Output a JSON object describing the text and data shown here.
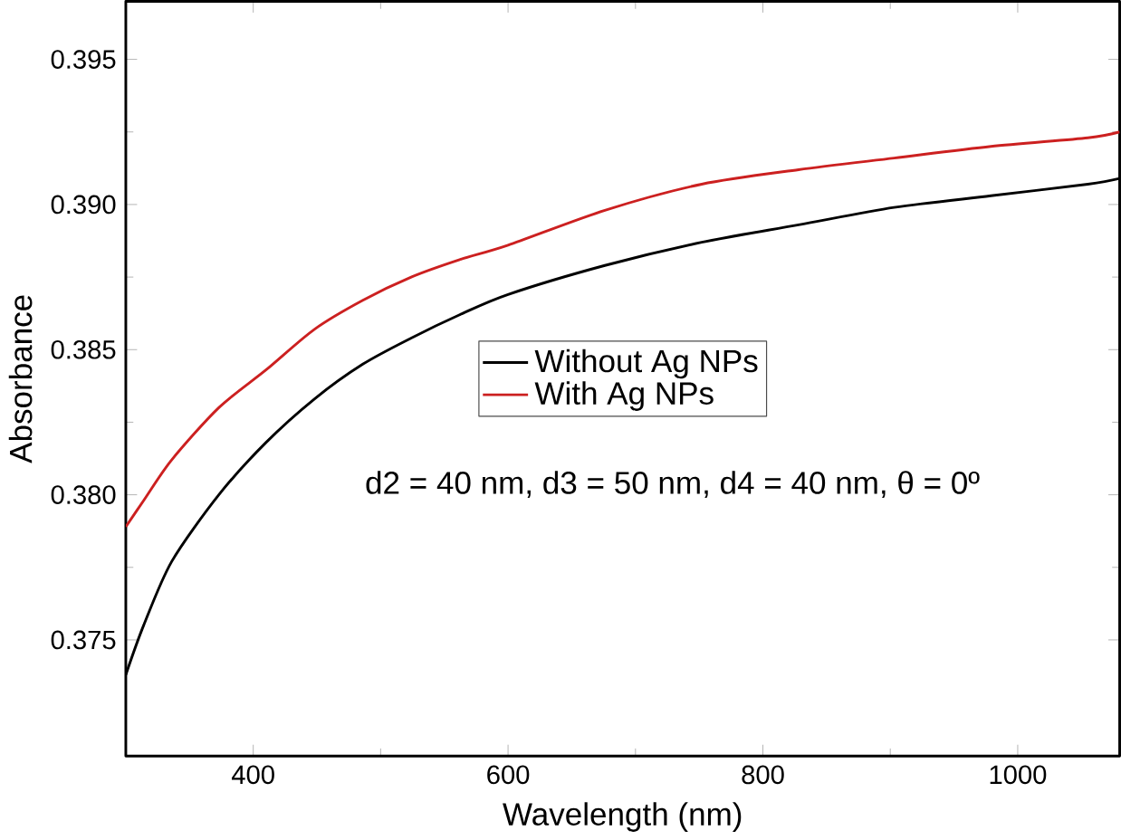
{
  "chart_data": {
    "type": "line",
    "xlabel": "Wavelength (nm)",
    "ylabel": "Absorbance",
    "annotations": [
      "d2 = 40 nm, d3 = 50 nm, d4 = 40 nm, θ = 0º"
    ],
    "x": [
      300,
      314,
      336,
      373,
      410,
      448,
      486,
      524,
      562,
      600,
      676,
      752,
      828,
      903,
      979,
      1055,
      1080
    ],
    "series": [
      {
        "name": "Without Ag NPs",
        "color": "#000000",
        "values": [
          0.3738,
          0.3755,
          0.3777,
          0.38,
          0.3818,
          0.3833,
          0.3845,
          0.3854,
          0.3862,
          0.3869,
          0.3879,
          0.3887,
          0.3893,
          0.3899,
          0.3903,
          0.3907,
          0.3909
        ]
      },
      {
        "name": "With Ag NPs",
        "color": "#cc2020",
        "values": [
          0.3789,
          0.3798,
          0.3812,
          0.383,
          0.3843,
          0.3857,
          0.3867,
          0.3875,
          0.3881,
          0.3886,
          0.3898,
          0.3907,
          0.3912,
          0.3916,
          0.392,
          0.3923,
          0.3925
        ]
      }
    ],
    "xlim": [
      300,
      1080
    ],
    "ylim": [
      0.371,
      0.397
    ],
    "xticks": [
      400,
      600,
      800,
      1000
    ],
    "yticks": [
      {
        "value": 0.375,
        "label": "0.375"
      },
      {
        "value": 0.38,
        "label": "0.380"
      },
      {
        "value": 0.385,
        "label": "0.385"
      },
      {
        "value": 0.39,
        "label": "0.390"
      },
      {
        "value": 0.395,
        "label": "0.395"
      }
    ],
    "grid": false,
    "legend": "center",
    "marker": "none",
    "line_style": "solid"
  }
}
